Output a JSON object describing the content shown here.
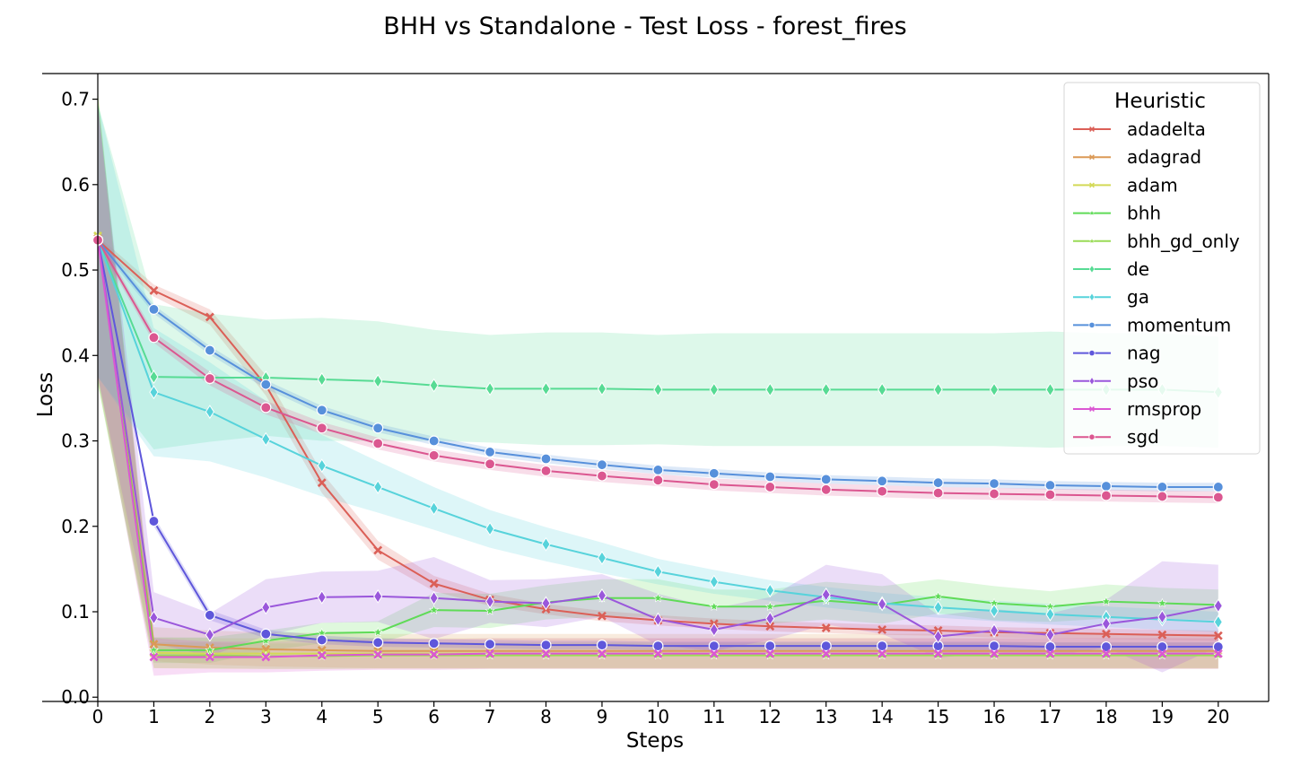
{
  "chart_data": {
    "type": "line",
    "title": "BHH vs Standalone - Test Loss - forest_fires",
    "xlabel": "Steps",
    "ylabel": "Loss",
    "xlim": [
      0,
      20.9
    ],
    "ylim": [
      -0.005,
      0.73
    ],
    "x": [
      0,
      1,
      2,
      3,
      4,
      5,
      6,
      7,
      8,
      9,
      10,
      11,
      12,
      13,
      14,
      15,
      16,
      17,
      18,
      19,
      20
    ],
    "x_ticks": [
      "0",
      "1",
      "2",
      "3",
      "4",
      "5",
      "6",
      "7",
      "8",
      "9",
      "10",
      "11",
      "12",
      "13",
      "14",
      "15",
      "16",
      "17",
      "18",
      "19",
      "20"
    ],
    "y_ticks": [
      {
        "v": 0.0,
        "label": "0.0"
      },
      {
        "v": 0.1,
        "label": "0.1"
      },
      {
        "v": 0.2,
        "label": "0.2"
      },
      {
        "v": 0.3,
        "label": "0.3"
      },
      {
        "v": 0.4,
        "label": "0.4"
      },
      {
        "v": 0.5,
        "label": "0.5"
      },
      {
        "v": 0.6,
        "label": "0.6"
      },
      {
        "v": 0.7,
        "label": "0.7"
      }
    ],
    "legend": {
      "title": "Heuristic",
      "placement": "top-right"
    },
    "series": [
      {
        "name": "adadelta",
        "color": "#db5f57",
        "marker": "x",
        "values": [
          0.535,
          0.476,
          0.445,
          0.365,
          0.251,
          0.172,
          0.133,
          0.114,
          0.103,
          0.095,
          0.09,
          0.086,
          0.083,
          0.081,
          0.079,
          0.078,
          0.076,
          0.075,
          0.074,
          0.073,
          0.072
        ],
        "band": [
          0.005,
          0.007,
          0.009,
          0.012,
          0.012,
          0.011,
          0.009,
          0.007,
          0.006,
          0.006,
          0.006,
          0.006,
          0.006,
          0.006,
          0.006,
          0.006,
          0.006,
          0.006,
          0.006,
          0.006,
          0.006
        ]
      },
      {
        "name": "adagrad",
        "color": "#db9a57",
        "marker": "x",
        "values": [
          0.537,
          0.062,
          0.058,
          0.056,
          0.055,
          0.054,
          0.054,
          0.054,
          0.054,
          0.054,
          0.054,
          0.054,
          0.054,
          0.054,
          0.054,
          0.054,
          0.054,
          0.054,
          0.054,
          0.054,
          0.054
        ],
        "band": [
          0.16,
          0.02,
          0.02,
          0.02,
          0.02,
          0.02,
          0.02,
          0.02,
          0.02,
          0.02,
          0.02,
          0.02,
          0.02,
          0.02,
          0.02,
          0.02,
          0.02,
          0.02,
          0.02,
          0.02,
          0.02
        ]
      },
      {
        "name": "adam",
        "color": "#d3d957",
        "marker": "x",
        "values": [
          0.54,
          0.052,
          0.051,
          0.051,
          0.051,
          0.051,
          0.051,
          0.051,
          0.051,
          0.051,
          0.051,
          0.051,
          0.051,
          0.051,
          0.051,
          0.051,
          0.051,
          0.051,
          0.051,
          0.051,
          0.051
        ],
        "band": [
          0.17,
          0.018,
          0.018,
          0.018,
          0.018,
          0.018,
          0.018,
          0.018,
          0.018,
          0.018,
          0.018,
          0.018,
          0.018,
          0.018,
          0.018,
          0.018,
          0.018,
          0.018,
          0.018,
          0.018,
          0.018
        ]
      },
      {
        "name": "bhh",
        "color": "#5fdb57",
        "marker": "star",
        "values": [
          0.537,
          0.055,
          0.055,
          0.066,
          0.075,
          0.076,
          0.102,
          0.101,
          0.111,
          0.116,
          0.116,
          0.106,
          0.106,
          0.113,
          0.108,
          0.118,
          0.11,
          0.106,
          0.112,
          0.11,
          0.108
        ],
        "band": [
          0.17,
          0.015,
          0.015,
          0.012,
          0.012,
          0.013,
          0.02,
          0.02,
          0.02,
          0.022,
          0.022,
          0.02,
          0.02,
          0.022,
          0.022,
          0.02,
          0.02,
          0.018,
          0.02,
          0.018,
          0.018
        ]
      },
      {
        "name": "bhh_gd_only",
        "color": "#9adb57",
        "marker": "star",
        "values": [
          0.537,
          0.049,
          0.049,
          0.048,
          0.048,
          0.049,
          0.049,
          0.049,
          0.049,
          0.049,
          0.049,
          0.049,
          0.049,
          0.049,
          0.049,
          0.049,
          0.049,
          0.049,
          0.049,
          0.049,
          0.049
        ],
        "band": [
          0.17,
          0.015,
          0.015,
          0.015,
          0.015,
          0.015,
          0.015,
          0.015,
          0.015,
          0.015,
          0.015,
          0.015,
          0.015,
          0.015,
          0.015,
          0.015,
          0.015,
          0.015,
          0.015,
          0.015,
          0.015
        ]
      },
      {
        "name": "de",
        "color": "#57db94",
        "marker": "diamond",
        "values": [
          0.535,
          0.375,
          0.374,
          0.374,
          0.372,
          0.37,
          0.365,
          0.361,
          0.361,
          0.361,
          0.36,
          0.36,
          0.36,
          0.36,
          0.36,
          0.36,
          0.36,
          0.36,
          0.36,
          0.36,
          0.357
        ],
        "band": [
          0.16,
          0.085,
          0.075,
          0.068,
          0.072,
          0.07,
          0.065,
          0.063,
          0.066,
          0.066,
          0.064,
          0.066,
          0.066,
          0.066,
          0.066,
          0.066,
          0.066,
          0.068,
          0.066,
          0.066,
          0.065
        ]
      },
      {
        "name": "ga",
        "color": "#57d3db",
        "marker": "diamond",
        "values": [
          0.535,
          0.357,
          0.334,
          0.302,
          0.271,
          0.246,
          0.221,
          0.197,
          0.179,
          0.163,
          0.147,
          0.135,
          0.125,
          0.117,
          0.11,
          0.105,
          0.101,
          0.097,
          0.094,
          0.091,
          0.088
        ],
        "band": [
          0.16,
          0.075,
          0.058,
          0.045,
          0.036,
          0.03,
          0.025,
          0.022,
          0.02,
          0.018,
          0.015,
          0.014,
          0.012,
          0.012,
          0.012,
          0.012,
          0.012,
          0.012,
          0.012,
          0.012,
          0.012
        ]
      },
      {
        "name": "momentum",
        "color": "#5790db",
        "marker": "circle",
        "values": [
          0.535,
          0.454,
          0.406,
          0.366,
          0.336,
          0.315,
          0.3,
          0.287,
          0.279,
          0.272,
          0.266,
          0.262,
          0.258,
          0.255,
          0.253,
          0.251,
          0.25,
          0.248,
          0.247,
          0.246,
          0.246
        ],
        "band": [
          0.005,
          0.005,
          0.005,
          0.005,
          0.005,
          0.005,
          0.005,
          0.005,
          0.005,
          0.005,
          0.005,
          0.005,
          0.005,
          0.005,
          0.005,
          0.005,
          0.005,
          0.005,
          0.005,
          0.005,
          0.005
        ]
      },
      {
        "name": "nag",
        "color": "#5f57db",
        "marker": "circle",
        "values": [
          0.535,
          0.206,
          0.096,
          0.074,
          0.067,
          0.064,
          0.063,
          0.062,
          0.061,
          0.061,
          0.06,
          0.06,
          0.06,
          0.06,
          0.06,
          0.06,
          0.06,
          0.059,
          0.059,
          0.059,
          0.059
        ],
        "band": [
          0.005,
          0.006,
          0.006,
          0.005,
          0.005,
          0.005,
          0.005,
          0.005,
          0.005,
          0.005,
          0.005,
          0.005,
          0.005,
          0.005,
          0.005,
          0.005,
          0.005,
          0.005,
          0.005,
          0.005,
          0.005
        ]
      },
      {
        "name": "pso",
        "color": "#9a57db",
        "marker": "diamond",
        "values": [
          0.535,
          0.093,
          0.073,
          0.105,
          0.117,
          0.118,
          0.116,
          0.112,
          0.11,
          0.119,
          0.091,
          0.079,
          0.092,
          0.12,
          0.109,
          0.071,
          0.078,
          0.073,
          0.086,
          0.094,
          0.107
        ],
        "band": [
          0.16,
          0.03,
          0.025,
          0.033,
          0.03,
          0.03,
          0.048,
          0.025,
          0.028,
          0.025,
          0.03,
          0.025,
          0.025,
          0.035,
          0.035,
          0.025,
          0.025,
          0.025,
          0.028,
          0.065,
          0.048
        ]
      },
      {
        "name": "rmsprop",
        "color": "#db57d3",
        "marker": "x",
        "values": [
          0.535,
          0.047,
          0.047,
          0.047,
          0.049,
          0.05,
          0.05,
          0.051,
          0.051,
          0.051,
          0.051,
          0.051,
          0.051,
          0.051,
          0.051,
          0.051,
          0.051,
          0.051,
          0.051,
          0.051,
          0.051
        ],
        "band": [
          0.16,
          0.022,
          0.018,
          0.018,
          0.018,
          0.018,
          0.018,
          0.018,
          0.018,
          0.018,
          0.018,
          0.018,
          0.018,
          0.018,
          0.018,
          0.018,
          0.018,
          0.018,
          0.018,
          0.018,
          0.018
        ]
      },
      {
        "name": "sgd",
        "color": "#db5790",
        "marker": "circle",
        "values": [
          0.535,
          0.421,
          0.373,
          0.339,
          0.315,
          0.297,
          0.283,
          0.273,
          0.265,
          0.259,
          0.254,
          0.249,
          0.246,
          0.243,
          0.241,
          0.239,
          0.238,
          0.237,
          0.236,
          0.235,
          0.234
        ],
        "band": [
          0.005,
          0.006,
          0.008,
          0.008,
          0.007,
          0.007,
          0.007,
          0.007,
          0.007,
          0.007,
          0.007,
          0.007,
          0.007,
          0.007,
          0.007,
          0.007,
          0.007,
          0.007,
          0.007,
          0.007,
          0.007
        ]
      }
    ]
  }
}
